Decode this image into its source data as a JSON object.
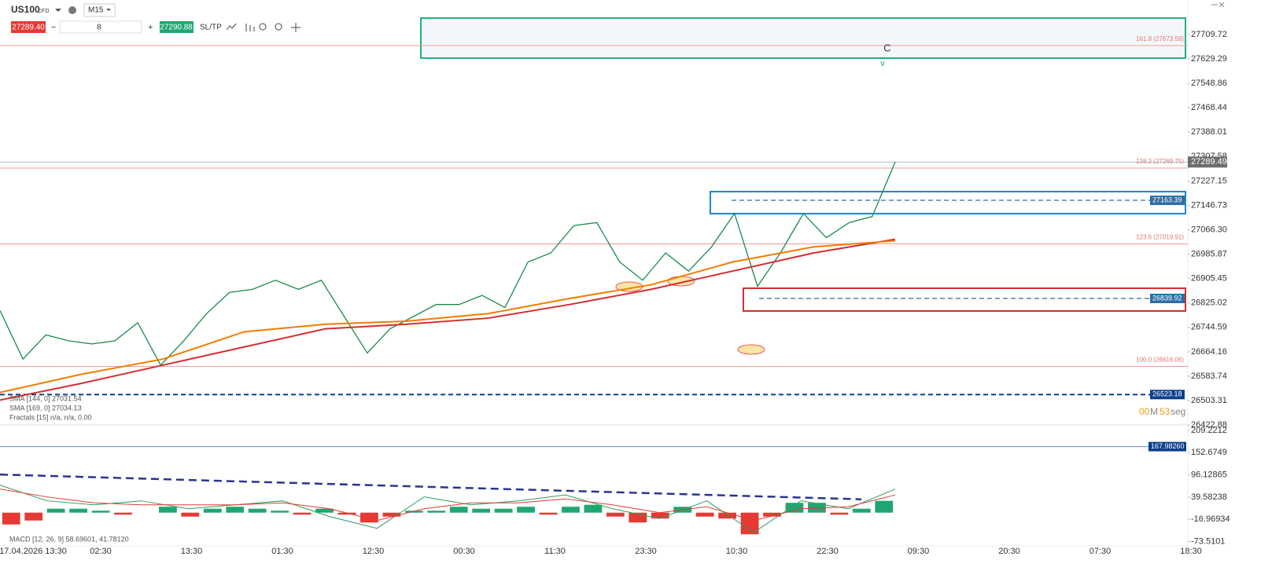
{
  "header": {
    "symbol": "US100",
    "symbol_type": "CFD",
    "timeframe": "M15",
    "sell_price": "27289.40",
    "quantity": "8",
    "buy_price": "27290.88",
    "sltp": "SL/TP"
  },
  "timer": {
    "minutes": "00",
    "minutes_unit": "M",
    "seconds": "53",
    "seconds_unit": "seg"
  },
  "chart_data": [
    {
      "type": "line",
      "ylim": [
        26423.1,
        27823.6
      ],
      "yticks": [
        27709.72,
        27629.29,
        27548.86,
        27468.44,
        27388.01,
        27307.58,
        27227.15,
        27146.73,
        {
          "value": 27066.3,
          "label": "27066.30"
        },
        26985.87,
        26905.45,
        26825.02,
        26744.59,
        26664.16,
        26583.74,
        26503.31,
        26422.88
      ],
      "x_axis_labels": [
        "17.04.2026 13:30",
        "02:30",
        "13:30",
        "01:30",
        "12:30",
        "00:30",
        "11:30",
        "23:30",
        "10:30",
        "22:30",
        "09:30",
        "20:30",
        "07:30",
        "18:30"
      ],
      "series": [
        {
          "color": "#1b8a4a",
          "values": [
            26800,
            26640,
            26720,
            26700,
            26690,
            26700,
            26760,
            26620,
            26700,
            26790,
            26860,
            26870,
            26900,
            26870,
            26900,
            26780,
            26660,
            26740,
            26780,
            26820,
            26820,
            26850,
            26810,
            26960,
            26990,
            27080,
            27090,
            26960,
            26900,
            26990,
            26930,
            27010,
            27120,
            26880,
            26990,
            27120,
            27040,
            27090,
            27110,
            27290
          ]
        },
        {
          "name": "SMA [144, 0] 27031.54",
          "color": "#d32f2f",
          "values": [
            26505,
            26560,
            26620,
            26680,
            26740,
            26755,
            26775,
            26820,
            26870,
            26930,
            26990,
            27035
          ]
        },
        {
          "name": "SMA [169, 0] 27034.13",
          "color": "#f57c00",
          "values": [
            26530,
            26590,
            26640,
            26730,
            26755,
            26765,
            26790,
            26840,
            26885,
            26960,
            27010,
            27030
          ]
        }
      ],
      "indicators": [
        "Fractals [15] n/a, n/a, 0.00"
      ],
      "fib_levels": [
        {
          "value": 27673.59,
          "label": "161.8 (27673.59)"
        },
        {
          "value": 27269.75,
          "label": "138.2 (27269.75)"
        },
        {
          "value": 27019.91,
          "label": "123.6 (27019.91)"
        },
        {
          "value": 26616.06,
          "label": "100.0 (26616.06)"
        }
      ],
      "price_levels": [
        {
          "value": 27163.39,
          "color": "#2e6da4"
        },
        {
          "value": 26839.92,
          "color": "#2e6da4"
        },
        {
          "value": 26523.18,
          "color": "#0d3f8a"
        }
      ],
      "last_price": {
        "value": 27289.49,
        "color": "#6d6d6d"
      },
      "zones": [
        {
          "top": 27764.1,
          "bottom": 27632.06,
          "color": "#1db37e"
        },
        {
          "top": 27192.0,
          "bottom": 27119.5,
          "color": "#1e88c8"
        },
        {
          "top": 26873.6,
          "bottom": 26798.5,
          "color": "#d32f2f"
        }
      ],
      "annotations": [
        "C",
        "v"
      ]
    },
    {
      "type": "macd",
      "name": "MACD [12, 26, 9] 58.69601, 41.78120",
      "ylim": [
        -84.5,
        219.2
      ],
      "yticks": [
        209.2212,
        152.6749,
        96.12865,
        39.58238,
        -16.96934,
        -73.5101
      ],
      "histogram": [
        -30,
        -20,
        10,
        10,
        5,
        -5,
        0,
        15,
        -10,
        10,
        15,
        10,
        5,
        -5,
        10,
        -5,
        -25,
        -10,
        5,
        5,
        15,
        10,
        10,
        15,
        -5,
        15,
        20,
        -10,
        -25,
        -15,
        15,
        -10,
        -15,
        -55,
        -10,
        25,
        25,
        -5,
        10,
        30
      ],
      "series": [
        {
          "color": "#2e9e5b",
          "values": [
            70,
            30,
            20,
            30,
            10,
            20,
            30,
            -10,
            -40,
            40,
            20,
            30,
            45,
            10,
            -15,
            30,
            -50,
            30,
            10,
            60
          ]
        },
        {
          "color": "#e53935",
          "values": [
            60,
            40,
            25,
            20,
            20,
            20,
            25,
            10,
            -20,
            10,
            25,
            25,
            35,
            20,
            0,
            15,
            -20,
            10,
            15,
            45
          ]
        }
      ],
      "level": {
        "value": 167.9826,
        "label": "167.98260",
        "color": "#0d3f8a"
      },
      "trendline": [
        97,
        34
      ]
    }
  ]
}
